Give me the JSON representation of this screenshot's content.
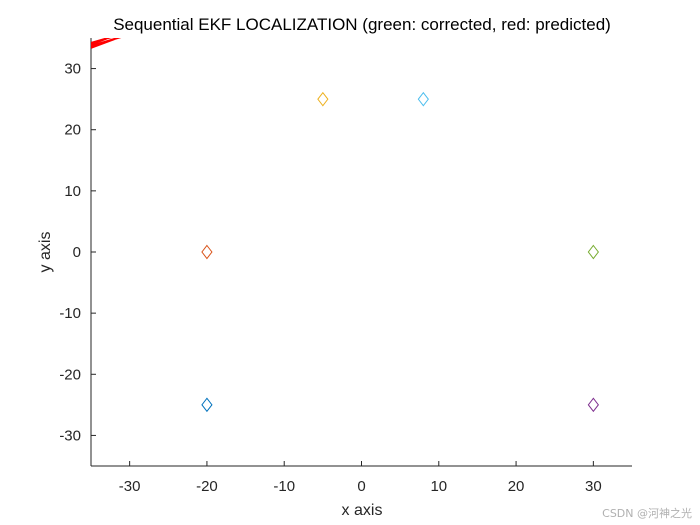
{
  "chart_data": {
    "type": "scatter",
    "title": "Sequential EKF LOCALIZATION (green: corrected, red: predicted)",
    "xlabel": "x axis",
    "ylabel": "y axis",
    "xlim": [
      -35,
      35
    ],
    "ylim": [
      -35,
      35
    ],
    "xticks": [
      -30,
      -20,
      -10,
      0,
      10,
      20,
      30
    ],
    "yticks": [
      -30,
      -20,
      -10,
      0,
      10,
      20,
      30
    ],
    "grid": false,
    "marker": "diamond",
    "landmarks": [
      {
        "x": -20,
        "y": 0,
        "color": "#d95319"
      },
      {
        "x": -20,
        "y": -25,
        "color": "#0072bd"
      },
      {
        "x": -5,
        "y": 25,
        "color": "#edb120"
      },
      {
        "x": 8,
        "y": 25,
        "color": "#4dbeee"
      },
      {
        "x": 30,
        "y": 0,
        "color": "#77ac30"
      },
      {
        "x": 30,
        "y": -25,
        "color": "#7e2f8e"
      }
    ],
    "predicted_path": {
      "color": "#ff0000",
      "segments": [
        [
          [
            -35,
            34.2
          ],
          [
            -30,
            36
          ]
        ],
        [
          [
            -35,
            33.7
          ],
          [
            -31,
            35.2
          ]
        ],
        [
          [
            -35,
            33.4
          ],
          [
            -32,
            34.8
          ]
        ],
        [
          [
            -35,
            33.9
          ],
          [
            -33,
            34.9
          ]
        ]
      ]
    }
  },
  "watermark": "CSDN @河神之光"
}
